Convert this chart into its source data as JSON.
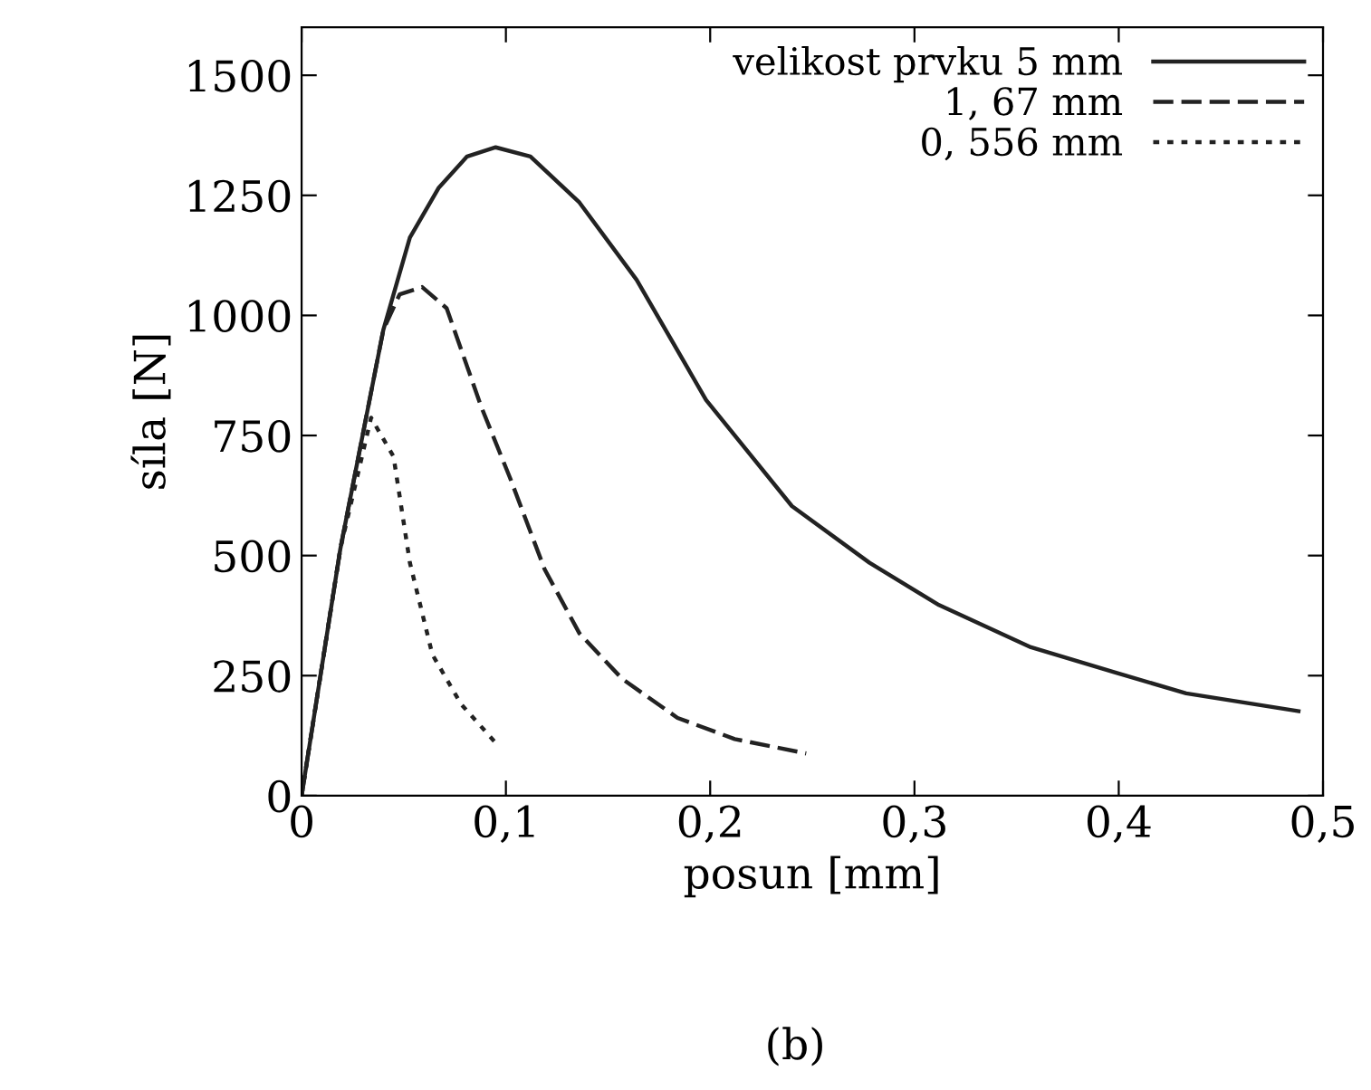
{
  "chart_data": {
    "type": "line",
    "xlabel": "posun [mm]",
    "ylabel": "síla [N]",
    "annotations": [
      "(b)"
    ],
    "xlim": [
      0,
      0.5
    ],
    "ylim": [
      0,
      1600
    ],
    "xticks": [
      0,
      {
        "value": 0.1,
        "label": "0,1"
      },
      {
        "value": 0.2,
        "label": "0,2"
      },
      {
        "value": 0.3,
        "label": "0,3"
      },
      {
        "value": 0.4,
        "label": "0,4"
      },
      {
        "value": 0.5,
        "label": "0,5"
      }
    ],
    "yticks": [
      0,
      250,
      500,
      750,
      1000,
      1250,
      1500
    ],
    "legend": "top right",
    "grid": false,
    "series": [
      {
        "name": "velikost prvku 5 mm",
        "color": "#222222",
        "line_style": "solid",
        "x": [
          0,
          0.019,
          0.04,
          0.053,
          0.067,
          0.081,
          0.095,
          0.112,
          0.136,
          0.164,
          0.198,
          0.24,
          0.278,
          0.312,
          0.357,
          0.398,
          0.433,
          0.488
        ],
        "values": [
          0,
          515,
          970,
          1162,
          1265,
          1331,
          1350,
          1331,
          1235,
          1074,
          824,
          603,
          485,
          397,
          309,
          257,
          213,
          176
        ]
      },
      {
        "name": "1, 67 mm",
        "color": "#222222",
        "line_style": "dashed",
        "x": [
          0,
          0.019,
          0.04,
          0.048,
          0.059,
          0.071,
          0.088,
          0.102,
          0.119,
          0.136,
          0.157,
          0.184,
          0.212,
          0.247
        ],
        "values": [
          0,
          515,
          970,
          1044,
          1059,
          1015,
          809,
          662,
          471,
          338,
          243,
          162,
          118,
          88
        ]
      },
      {
        "name": "0, 556 mm",
        "color": "#222222",
        "line_style": "dotted",
        "x": [
          0,
          0.019,
          0.034,
          0.045,
          0.053,
          0.064,
          0.078,
          0.095
        ],
        "values": [
          0,
          515,
          787,
          706,
          485,
          294,
          191,
          110
        ]
      }
    ]
  }
}
